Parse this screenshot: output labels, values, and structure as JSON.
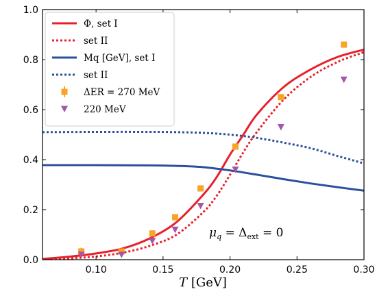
{
  "chart_data": {
    "type": "line",
    "xlabel": "T [GeV]",
    "ylabel": "",
    "xlim": [
      0.06,
      0.3
    ],
    "ylim": [
      0.0,
      1.0
    ],
    "xticks": [
      0.1,
      0.15,
      0.2,
      0.25,
      0.3
    ],
    "xtick_labels": [
      "0.10",
      "0.15",
      "0.20",
      "0.25",
      "0.30"
    ],
    "yticks": [
      0.0,
      0.2,
      0.4,
      0.6,
      0.8,
      1.0
    ],
    "ytick_labels": [
      "0.0",
      "0.2",
      "0.4",
      "0.6",
      "0.8",
      "1.0"
    ],
    "grid": false,
    "legend_position": "top-left",
    "annotation": "μq = Δext = 0",
    "series": [
      {
        "name": "Φ, set I",
        "style": "solid",
        "color": "#e8202a",
        "kind": "line",
        "x": [
          0.06,
          0.08,
          0.1,
          0.12,
          0.14,
          0.16,
          0.18,
          0.19,
          0.2,
          0.21,
          0.22,
          0.24,
          0.26,
          0.28,
          0.3
        ],
        "y": [
          0.003,
          0.012,
          0.025,
          0.045,
          0.085,
          0.15,
          0.26,
          0.33,
          0.42,
          0.5,
          0.58,
          0.69,
          0.76,
          0.81,
          0.84
        ]
      },
      {
        "name": "set II",
        "style": "dotted",
        "color": "#e8202a",
        "kind": "line",
        "x": [
          0.06,
          0.08,
          0.1,
          0.12,
          0.14,
          0.16,
          0.18,
          0.19,
          0.2,
          0.21,
          0.22,
          0.24,
          0.26,
          0.28,
          0.3
        ],
        "y": [
          0.001,
          0.005,
          0.013,
          0.028,
          0.055,
          0.1,
          0.19,
          0.255,
          0.34,
          0.43,
          0.51,
          0.64,
          0.73,
          0.79,
          0.83
        ]
      },
      {
        "name": "Mq [GeV], set I",
        "style": "solid",
        "color": "#2a4f9f",
        "kind": "line",
        "x": [
          0.06,
          0.1,
          0.14,
          0.16,
          0.18,
          0.2,
          0.22,
          0.24,
          0.26,
          0.28,
          0.3
        ],
        "y": [
          0.378,
          0.378,
          0.377,
          0.375,
          0.37,
          0.357,
          0.34,
          0.322,
          0.305,
          0.29,
          0.276
        ]
      },
      {
        "name": "set II",
        "style": "dotted",
        "color": "#2a4f9f",
        "kind": "line",
        "x": [
          0.06,
          0.1,
          0.14,
          0.16,
          0.18,
          0.2,
          0.22,
          0.24,
          0.26,
          0.28,
          0.3
        ],
        "y": [
          0.51,
          0.511,
          0.511,
          0.51,
          0.507,
          0.5,
          0.487,
          0.468,
          0.446,
          0.415,
          0.385
        ]
      },
      {
        "name": "ΔER = 270 MeV",
        "kind": "scatter",
        "marker": "square",
        "color": "#f7a427",
        "x": [
          0.089,
          0.119,
          0.142,
          0.159,
          0.178,
          0.204,
          0.238,
          0.285
        ],
        "y": [
          0.033,
          0.033,
          0.105,
          0.17,
          0.285,
          0.452,
          0.65,
          0.86
        ],
        "yerr": [
          0.015,
          0.006,
          0.006,
          0.006,
          0.006,
          0.006,
          0.006,
          0.006
        ]
      },
      {
        "name": "220 MeV",
        "kind": "scatter",
        "marker": "triangle-down",
        "color": "#a656a8",
        "x": [
          0.089,
          0.119,
          0.142,
          0.159,
          0.178,
          0.204,
          0.238,
          0.285
        ],
        "y": [
          0.02,
          0.02,
          0.075,
          0.12,
          0.215,
          0.36,
          0.53,
          0.72
        ]
      }
    ]
  }
}
